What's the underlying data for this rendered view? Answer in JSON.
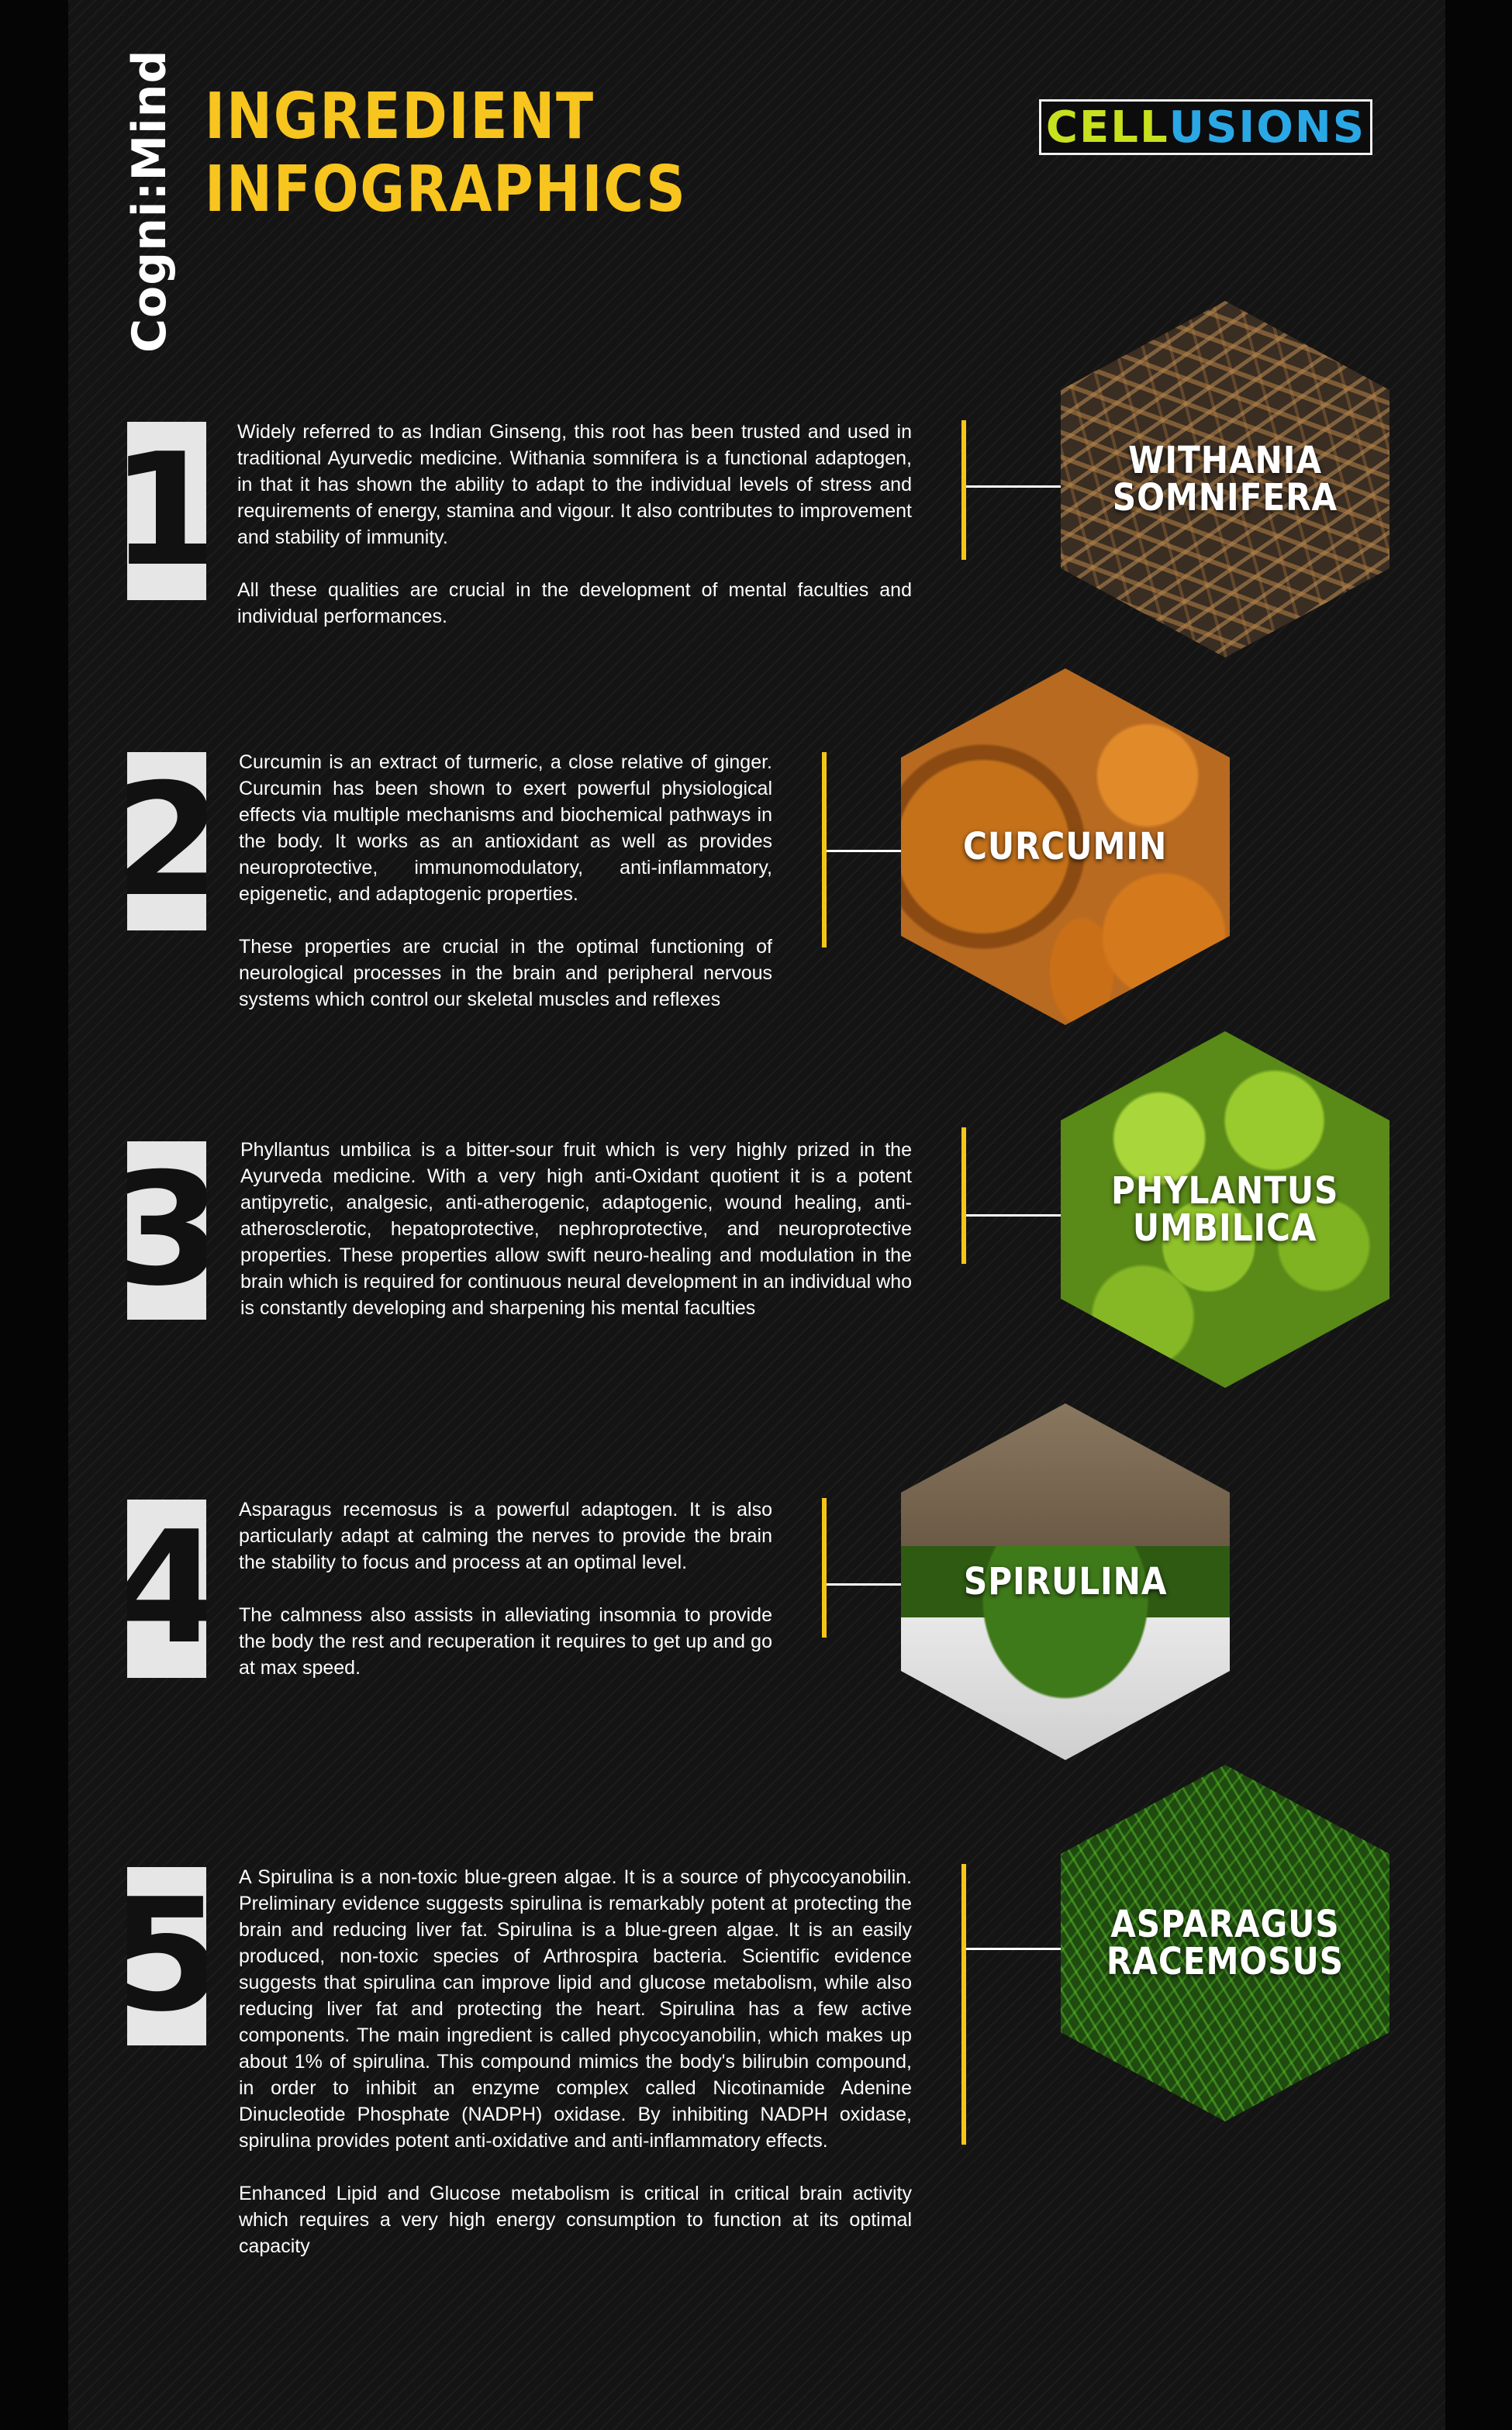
{
  "brand": "Cogni:Mind",
  "title_line1": "INGREDIENT",
  "title_line2": "INFOGRAPHICS",
  "logo": {
    "part1": "CELL",
    "part2": "USIONS"
  },
  "colors": {
    "accent": "#f5c518",
    "title": "#f7c51e",
    "logo_green": "#c7e11f",
    "logo_blue": "#2aa8e6"
  },
  "ingredients": [
    {
      "number": "1",
      "name": "WITHANIA\nSOMNIFERA",
      "paragraphs": [
        "Widely referred to as Indian Ginseng, this root has been trusted and used in traditional Ayurvedic medicine. Withania somnifera is a functional adaptogen, in that it has shown the ability to adapt to the individual levels of stress and requirements of energy, stamina and vigour. It also contributes to improvement and stability of immunity.",
        "All these qualities are crucial in the development of mental faculties and individual performances."
      ]
    },
    {
      "number": "2",
      "name": "CURCUMIN",
      "paragraphs": [
        "Curcumin is an extract of turmeric, a close relative of ginger. Curcumin has been shown to exert powerful physiological effects via multiple mechanisms and biochemical pathways in the body. It works as an antioxidant as well as provides neuroprotective, immunomodulatory, anti-inflammatory, epigenetic, and adaptogenic properties.",
        "These properties are crucial in the optimal functioning of neurological processes in the brain and peripheral nervous systems which control our skeletal muscles and reflexes"
      ]
    },
    {
      "number": "3",
      "name": "PHYLANTUS\nUMBILICA",
      "paragraphs": [
        "Phyllantus umbilica is a bitter-sour fruit which is very highly prized in the Ayurveda medicine. With a very high anti-Oxidant quotient it is a potent antipyretic, analgesic, anti-atherogenic, adaptogenic, wound healing, anti-atherosclerotic, hepatoprotective, nephroprotective, and neuroprotective properties. These properties allow swift neuro-healing and modulation in the brain which is required for continuous neural development in an individual who is constantly developing and sharpening his mental faculties"
      ]
    },
    {
      "number": "4",
      "name": "SPIRULINA",
      "paragraphs": [
        "Asparagus recemosus is a powerful adaptogen. It is also particularly adapt at calming the nerves to provide the brain the stability to focus and process at an optimal level.",
        "The calmness also assists in alleviating insomnia to provide the body the rest and recuperation it requires to get up and go at max speed."
      ]
    },
    {
      "number": "5",
      "name": "ASPARAGUS\nRACEMOSUS",
      "paragraphs": [
        "A Spirulina is a non-toxic blue-green algae. It is a source of phycocyanobilin. Preliminary evidence suggests spirulina is remarkably potent at protecting the brain and reducing liver fat. Spirulina is a blue-green algae. It is an easily produced, non-toxic species of Arthrospira bacteria. Scientific evidence suggests that spirulina can improve lipid and glucose metabolism, while also reducing liver fat and protecting the heart. Spirulina has a few active components. The main ingredient is called phycocyanobilin, which makes up about 1% of spirulina. This compound mimics the body's bilirubin compound, in order to inhibit an enzyme complex called Nicotinamide Adenine Dinucleotide Phosphate (NADPH) oxidase. By inhibiting NADPH oxidase, spirulina provides potent anti-oxidative and anti-inflammatory effects.",
        "Enhanced Lipid and Glucose metabolism is critical in critical brain activity which requires a very high energy consumption to function at its optimal capacity"
      ]
    }
  ]
}
